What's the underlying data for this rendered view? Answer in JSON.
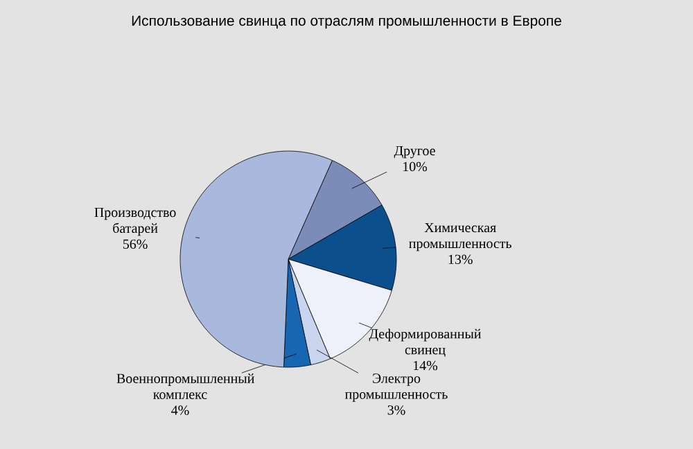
{
  "chart_data": {
    "type": "pie",
    "title": "Использование свинца по отраслям промышленности в Европе",
    "categories": [
      "Другое",
      "Химическая промышленность",
      "Деформированный свинец",
      "Электро промышленность",
      "Военнопромышленный комплекс",
      "Производство батарей"
    ],
    "values": [
      10,
      13,
      14,
      3,
      4,
      56
    ],
    "value_labels": [
      "10%",
      "13%",
      "14%",
      "3%",
      "4%",
      "56%"
    ],
    "colors": [
      "#7b8cb8",
      "#0b4f8c",
      "#eef0fa",
      "#c9d5ef",
      "#1666b2",
      "#a9b9de"
    ]
  }
}
